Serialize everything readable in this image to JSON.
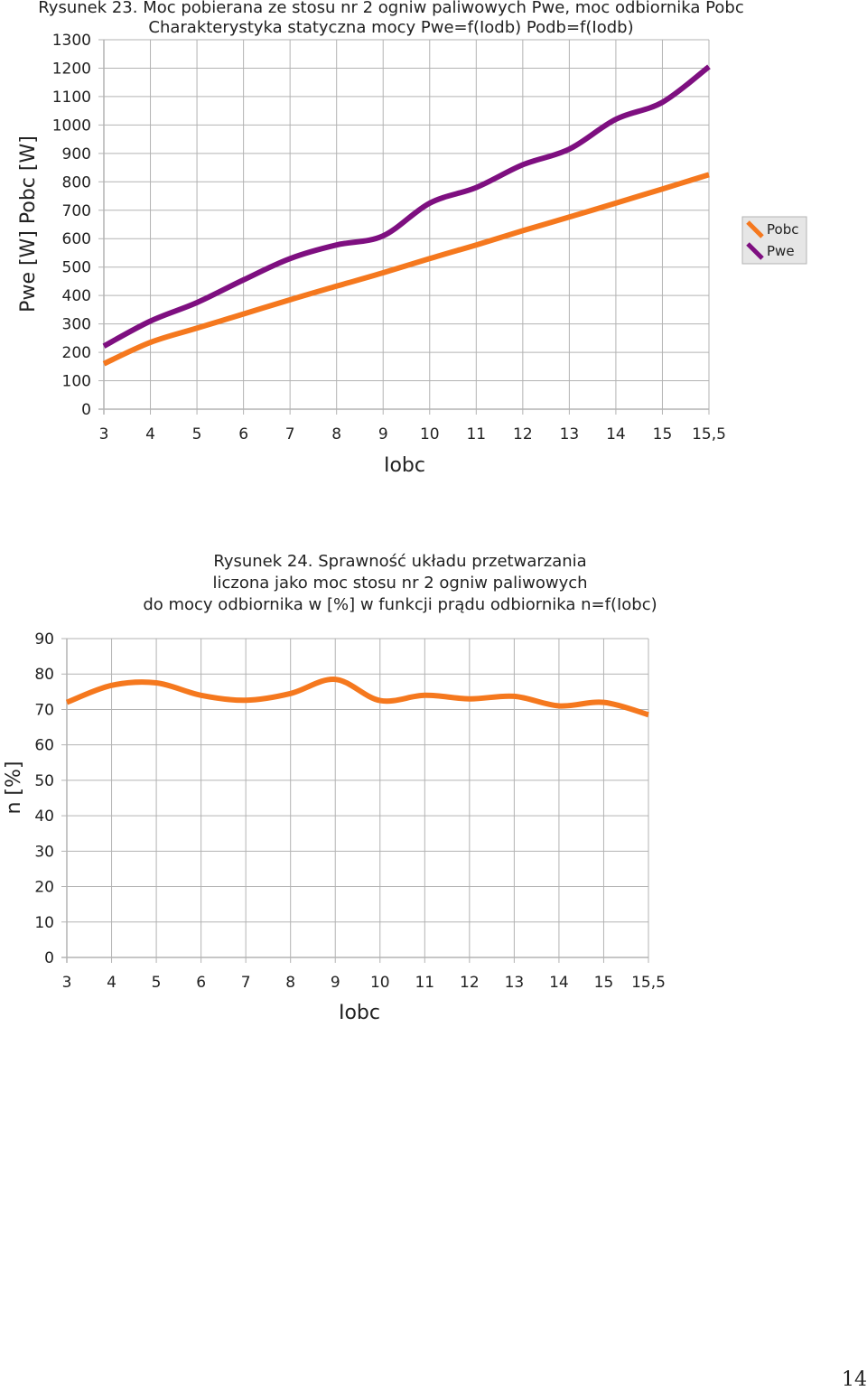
{
  "page_number": "14",
  "chart_data": [
    {
      "type": "line",
      "title_lines": [
        "Rysunek 23.  Moc pobierana ze stosu nr 2 ogniw paliwowych Pwe, moc odbiornika Pobc",
        "Charakterystyka statyczna mocy Pwe=f(Iodb)  Podb=f(Iodb)"
      ],
      "xlabel": "Iobc",
      "ylabel": "Pwe [W]  Pobc [W]",
      "categories": [
        "3",
        "4",
        "5",
        "6",
        "7",
        "8",
        "9",
        "10",
        "11",
        "12",
        "13",
        "14",
        "15",
        "15,5"
      ],
      "ylim": [
        0,
        1300
      ],
      "yticks": [
        0,
        100,
        200,
        300,
        400,
        500,
        600,
        700,
        800,
        900,
        1000,
        1100,
        1200,
        1300
      ],
      "grid": true,
      "legend_position": "right",
      "series": [
        {
          "name": "Pobc",
          "color": "#f5781e",
          "values": [
            160,
            235,
            285,
            335,
            385,
            433,
            480,
            530,
            578,
            628,
            676,
            725,
            775,
            825
          ]
        },
        {
          "name": "Pwe",
          "color": "#7e0f80",
          "values": [
            222,
            310,
            375,
            455,
            530,
            578,
            610,
            725,
            780,
            860,
            915,
            1020,
            1080,
            1205
          ]
        }
      ]
    },
    {
      "type": "line",
      "title_lines": [
        "Rysunek 24. Sprawność układu przetwarzania",
        "liczona jako moc stosu nr 2 ogniw paliwowych",
        "do mocy odbiornika w [%] w funkcji prądu odbiornika n=f(Iobc)"
      ],
      "xlabel": "Iobc",
      "ylabel": "n [%]",
      "categories": [
        "3",
        "4",
        "5",
        "6",
        "7",
        "8",
        "9",
        "10",
        "11",
        "12",
        "13",
        "14",
        "15",
        "15,5"
      ],
      "ylim": [
        0,
        90
      ],
      "yticks": [
        0,
        10,
        20,
        30,
        40,
        50,
        60,
        70,
        80,
        90
      ],
      "grid": true,
      "series": [
        {
          "color": "#f5781e",
          "values": [
            72,
            76.8,
            77.5,
            74,
            72.6,
            74.5,
            78.5,
            72.5,
            74,
            73,
            73.7,
            71,
            72,
            68.5
          ]
        }
      ]
    }
  ]
}
